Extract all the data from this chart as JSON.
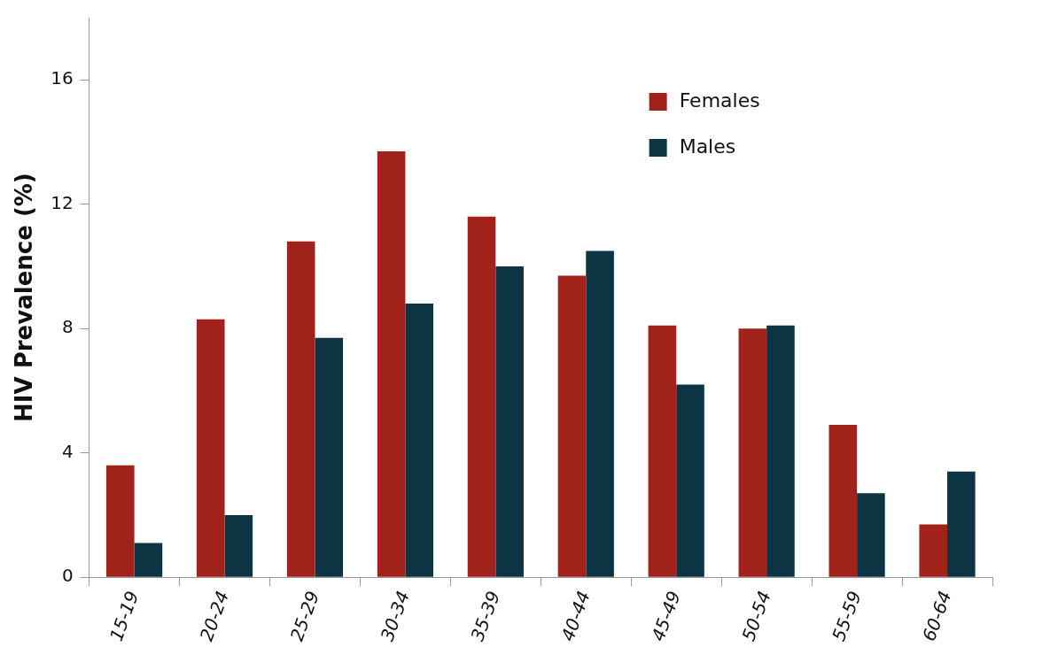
{
  "chart_data": {
    "type": "bar",
    "ylabel": "HIV Prevalence (%)",
    "categories": [
      "15-19",
      "20-24",
      "25-29",
      "30-34",
      "35-39",
      "40-44",
      "45-49",
      "50-54",
      "55-59",
      "60-64"
    ],
    "series": [
      {
        "name": "Females",
        "color": "#a0221a",
        "values": [
          3.6,
          8.3,
          10.8,
          13.7,
          11.6,
          9.7,
          8.1,
          8.0,
          4.9,
          1.7
        ]
      },
      {
        "name": "Males",
        "color": "#0c3443",
        "values": [
          1.1,
          2.0,
          7.7,
          8.8,
          10.0,
          10.5,
          6.2,
          8.1,
          2.7,
          3.4
        ]
      }
    ],
    "ylim": [
      0,
      18
    ],
    "yticks": [
      0,
      4,
      8,
      12,
      16
    ],
    "grid": false,
    "legend": "top right"
  }
}
